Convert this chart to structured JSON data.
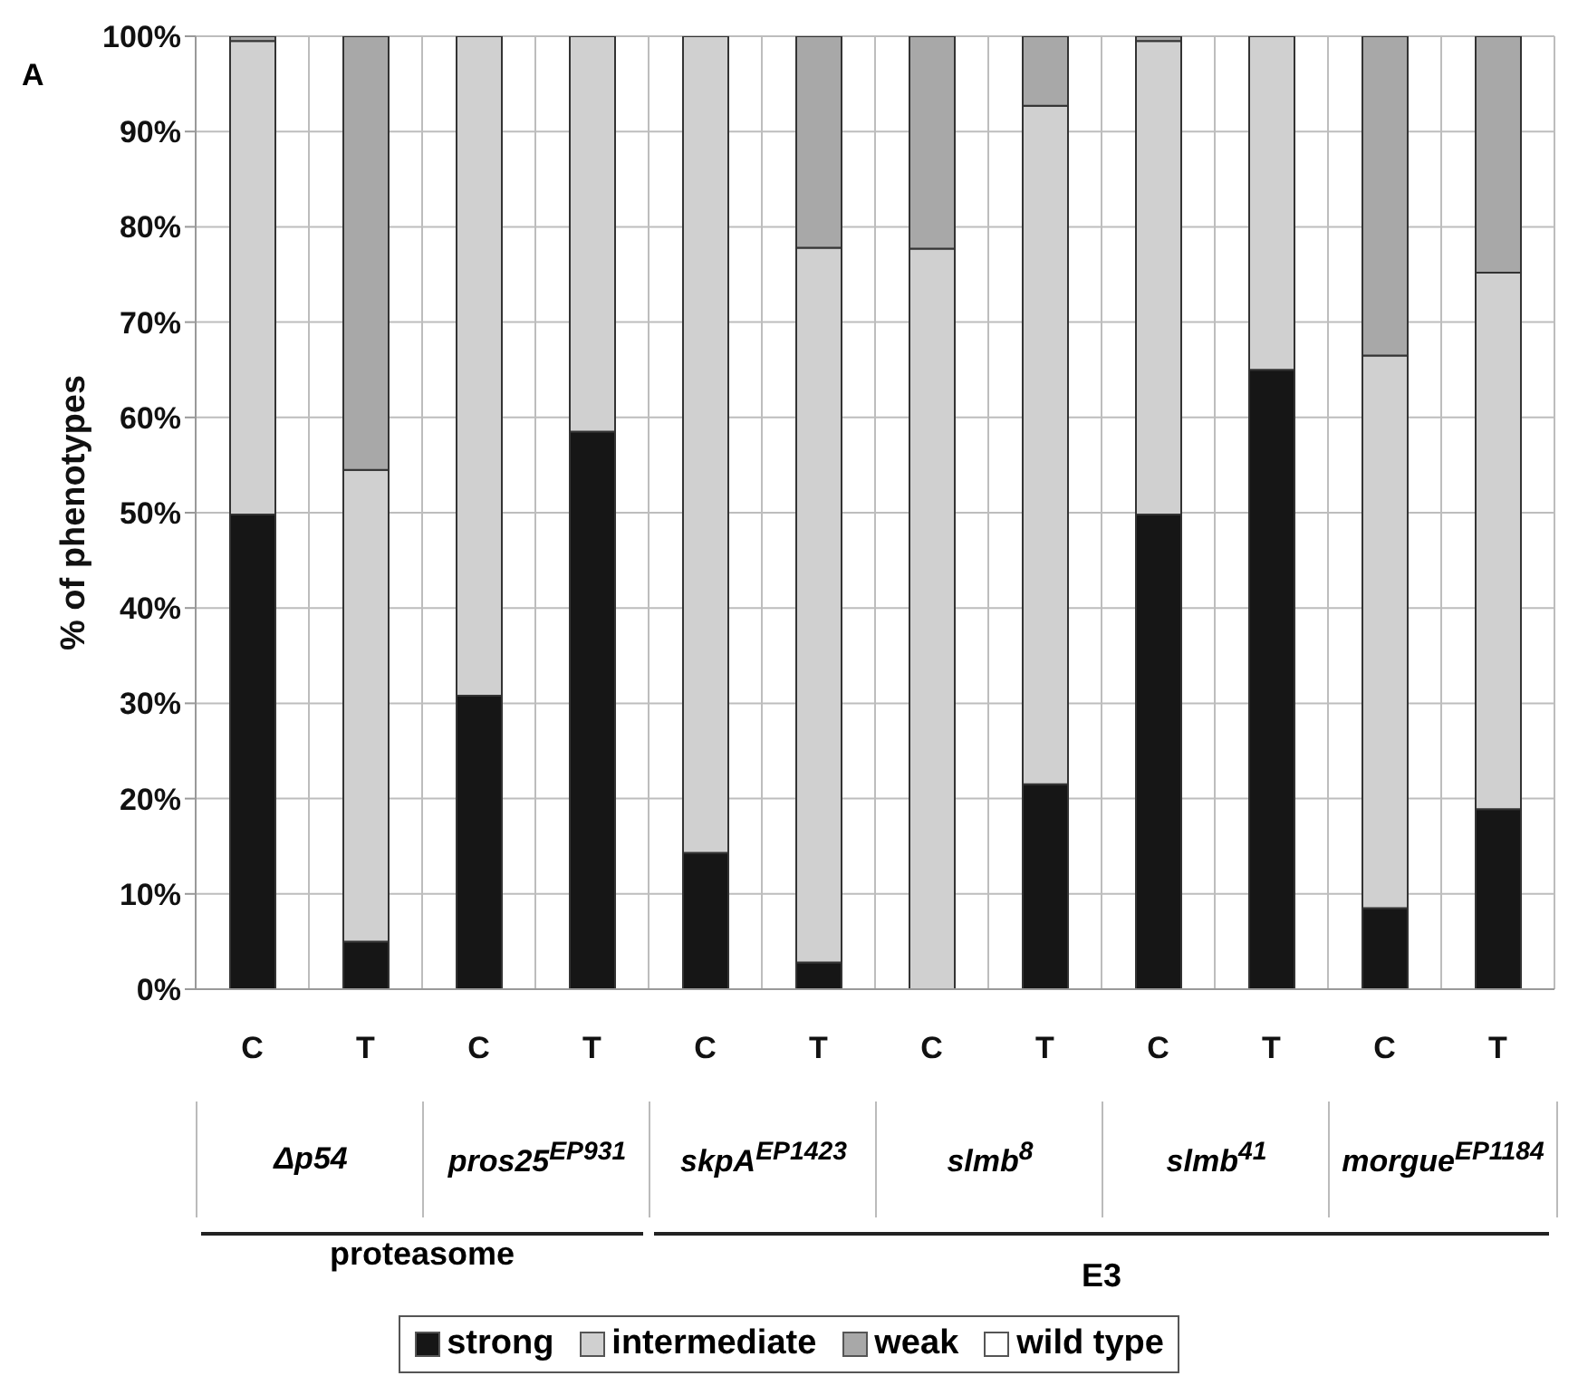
{
  "chart_data": {
    "type": "bar",
    "stacked": true,
    "ylabel": "% of phenotypes",
    "categories": [
      "C",
      "T",
      "C",
      "T",
      "C",
      "T",
      "C",
      "T",
      "C",
      "T",
      "C",
      "T"
    ],
    "series": [
      {
        "name": "strong",
        "color": "#161616",
        "values": [
          49.8,
          5,
          30.8,
          58.5,
          14.3,
          2.8,
          0,
          21.5,
          49.8,
          65,
          8.5,
          18.9
        ]
      },
      {
        "name": "intermediate",
        "color": "#d0d0d0",
        "values": [
          49.7,
          49.5,
          69.2,
          41.5,
          85.7,
          75,
          77.7,
          71.2,
          49.7,
          35,
          58,
          56.3
        ]
      },
      {
        "name": "weak",
        "color": "#a8a8a8",
        "values": [
          0.5,
          45.5,
          0,
          0,
          0,
          22.2,
          22.3,
          7.3,
          0.5,
          0,
          33.5,
          24.8
        ]
      },
      {
        "name": "wild type",
        "color": "#ffffff",
        "values": [
          0,
          0,
          0,
          0,
          0,
          0,
          0,
          0,
          0,
          0,
          0,
          0
        ]
      }
    ],
    "ylim": [
      0,
      100
    ],
    "yticks": [
      {
        "value": 0,
        "label": "0%"
      },
      {
        "value": 10,
        "label": "10%"
      },
      {
        "value": 20,
        "label": "20%"
      },
      {
        "value": 30,
        "label": "30%"
      },
      {
        "value": 40,
        "label": "40%"
      },
      {
        "value": 50,
        "label": "50%"
      },
      {
        "value": 60,
        "label": "60%"
      },
      {
        "value": 70,
        "label": "70%"
      },
      {
        "value": 80,
        "label": "80%"
      },
      {
        "value": 90,
        "label": "90%"
      },
      {
        "value": 100,
        "label": "100%"
      }
    ],
    "grid": true,
    "legend": "bottom",
    "annotations": [
      "Δp54",
      "pros25$^{EP931}$",
      "skpA$^{EP1423}$",
      "slmb$^{8}$",
      "slmb$^{41}$",
      "morgue$^{EP1184}$",
      "proteasome",
      "E3",
      "A"
    ]
  }
}
